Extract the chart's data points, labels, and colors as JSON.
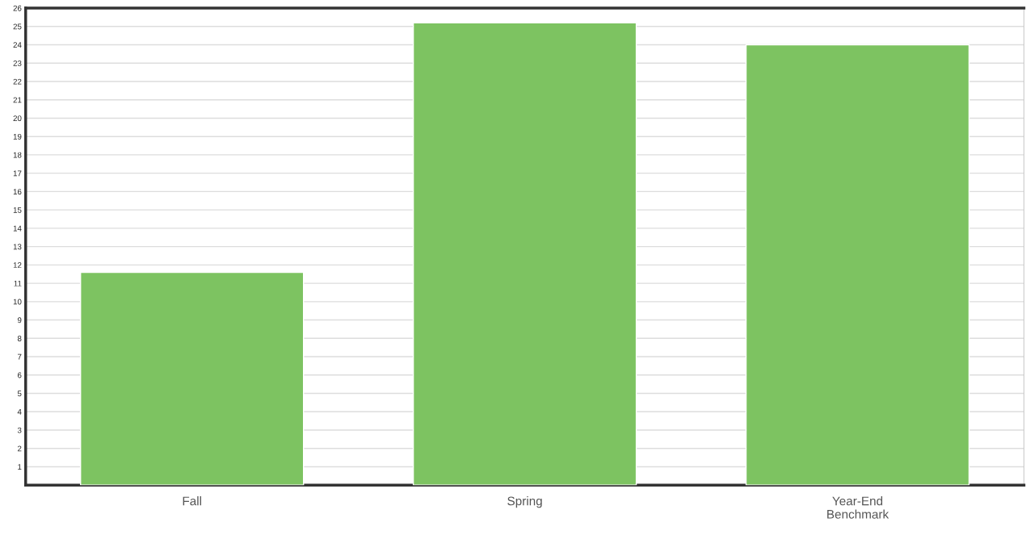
{
  "chart_data": {
    "type": "bar",
    "categories": [
      "Fall",
      "Spring",
      "Year-End\nBenchmark"
    ],
    "values": [
      11.6,
      25.2,
      24.0
    ],
    "color": "#7dc361",
    "ylim": [
      0,
      26
    ],
    "yticks": [
      1,
      2,
      3,
      4,
      5,
      6,
      7,
      8,
      9,
      10,
      11,
      12,
      13,
      14,
      15,
      16,
      17,
      18,
      19,
      20,
      21,
      22,
      23,
      24,
      25,
      26
    ],
    "grid": "y"
  }
}
